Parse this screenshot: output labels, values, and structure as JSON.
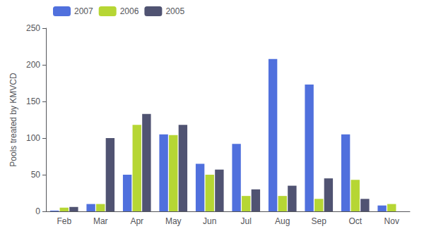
{
  "chart_data": {
    "type": "bar",
    "categories": [
      "Feb",
      "Mar",
      "Apr",
      "May",
      "Jun",
      "Jul",
      "Aug",
      "Sep",
      "Oct",
      "Nov"
    ],
    "series": [
      {
        "name": "2007",
        "values": [
          1,
          10,
          50,
          105,
          65,
          92,
          208,
          173,
          105,
          8
        ]
      },
      {
        "name": "2006",
        "values": [
          5,
          10,
          118,
          104,
          50,
          21,
          21,
          17,
          43,
          10
        ]
      },
      {
        "name": "2005",
        "values": [
          6,
          100,
          133,
          118,
          57,
          30,
          35,
          45,
          17,
          0
        ]
      }
    ],
    "ylabel": "Pools treated by KMVCD",
    "ylim": [
      0,
      250
    ],
    "yticks": [
      0,
      50,
      100,
      150,
      200,
      250
    ],
    "grid": false,
    "legend": "upper left"
  }
}
